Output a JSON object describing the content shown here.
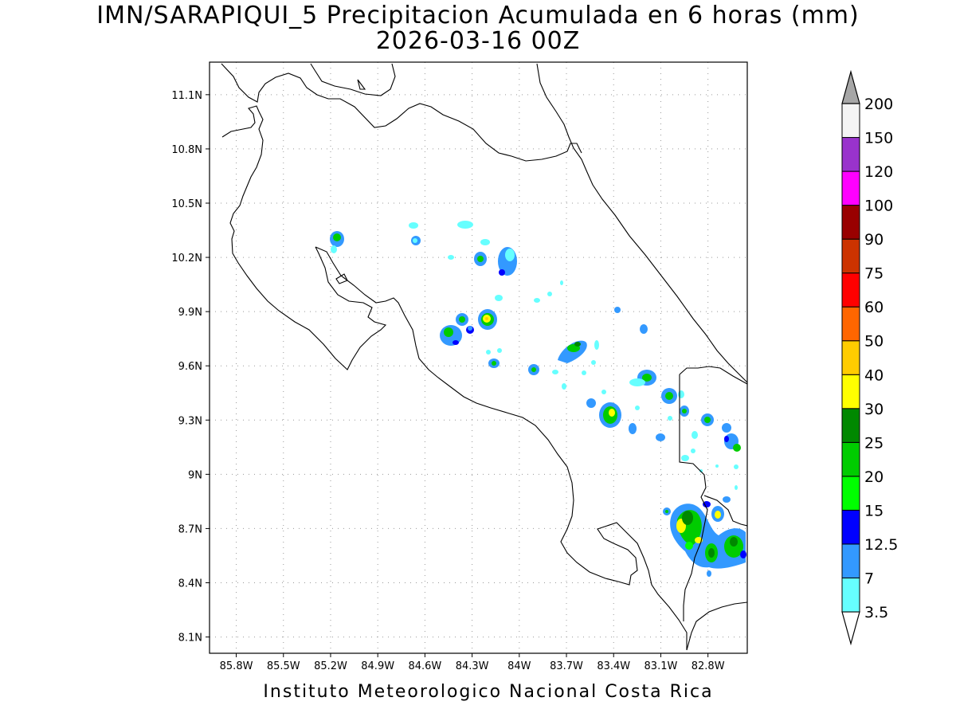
{
  "title": {
    "line1": "IMN/SARAPIQUI_5 Precipitacion Acumulada en 6 horas (mm)",
    "line2": "2026-03-16 00Z"
  },
  "footer": "Instituto Meteorologico Nacional Costa Rica",
  "axes": {
    "x_ticks": [
      "85.8W",
      "85.5W",
      "85.2W",
      "84.9W",
      "84.6W",
      "84.3W",
      "84W",
      "83.7W",
      "83.4W",
      "83.1W",
      "82.8W"
    ],
    "y_ticks": [
      "11.1N",
      "10.8N",
      "10.5N",
      "10.2N",
      "9.9N",
      "9.6N",
      "9.3N",
      "9N",
      "8.7N",
      "8.4N",
      "8.1N"
    ],
    "x_range": [
      -85.97,
      -82.55
    ],
    "y_range": [
      8.01,
      11.28
    ],
    "grid": "dotted"
  },
  "colorbar": {
    "labels": [
      "3.5",
      "7",
      "12.5",
      "15",
      "20",
      "25",
      "30",
      "40",
      "50",
      "60",
      "75",
      "90",
      "100",
      "120",
      "150",
      "200"
    ],
    "colors": [
      "#ffffff",
      "#66ffff",
      "#3399ff",
      "#0000ff",
      "#00ff00",
      "#00cc00",
      "#008800",
      "#ffff00",
      "#ffcc00",
      "#ff6600",
      "#ff0000",
      "#cc3300",
      "#990000",
      "#ff00ff",
      "#9933cc",
      "#f4f4f4",
      "#a6a6a6"
    ],
    "orientation": "vertical, right side"
  }
}
